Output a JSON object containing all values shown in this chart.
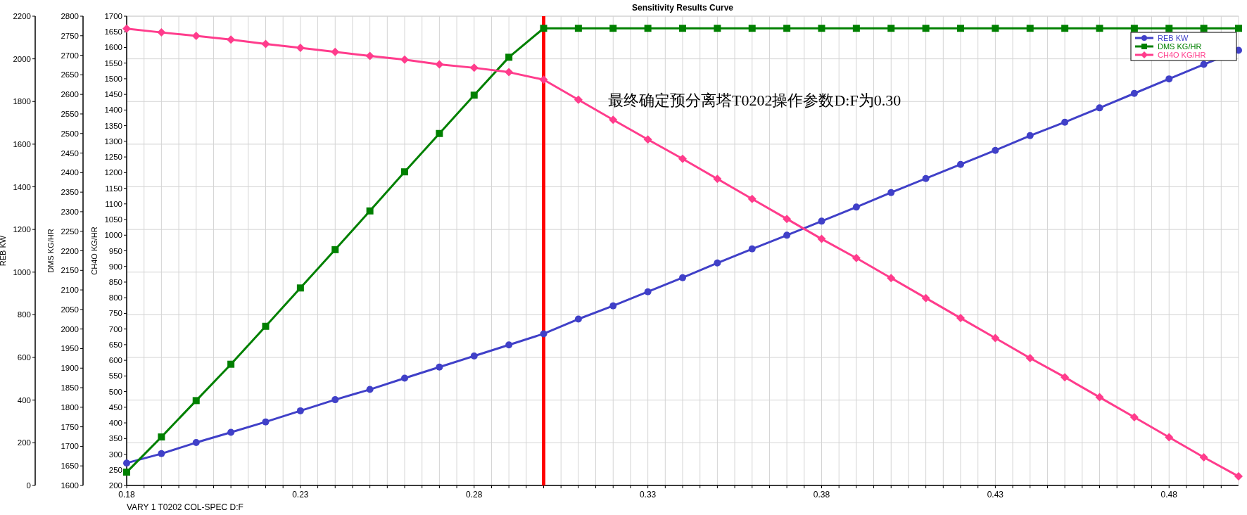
{
  "chart_data": {
    "type": "line",
    "title": "Sensitivity Results Curve",
    "xlabel": "VARY   1 T0202 COL-SPEC D:F",
    "ylabel": "REB KW",
    "y2label": "DMS KG/HR",
    "y3label": "CH4O KG/HR",
    "annotations": [
      "最终确定预分离塔T0202操作参数D:F为0.30"
    ],
    "x": [
      0.18,
      0.19,
      0.2,
      0.21,
      0.22,
      0.23,
      0.24,
      0.25,
      0.26,
      0.27,
      0.28,
      0.29,
      0.3,
      0.31,
      0.32,
      0.33,
      0.34,
      0.35,
      0.36,
      0.37,
      0.38,
      0.39,
      0.4,
      0.41,
      0.42,
      0.43,
      0.44,
      0.45,
      0.46,
      0.47,
      0.48,
      0.49,
      0.5
    ],
    "series": [
      {
        "name": "REB KW",
        "color": "#4040c8",
        "marker": "circle",
        "values": [
          105,
          149,
          201,
          249,
          298,
          350,
          402,
          450,
          503,
          555,
          607,
          659,
          711,
          780,
          842,
          908,
          974,
          1043,
          1109,
          1173,
          1239,
          1305,
          1373,
          1439,
          1505,
          1571,
          1640,
          1703,
          1770,
          1838,
          1906,
          1974,
          2040
        ]
      },
      {
        "name": "DMS KG/HR",
        "color": "#008000",
        "marker": "square",
        "axis": "y2",
        "values": [
          1634,
          1724,
          1817,
          1910,
          2007,
          2105,
          2203,
          2302,
          2402,
          2500,
          2598,
          2695,
          2769,
          2769,
          2769,
          2769,
          2769,
          2769,
          2769,
          2769,
          2769,
          2769,
          2769,
          2769,
          2769,
          2769,
          2769,
          2769,
          2769,
          2769,
          2769,
          2769,
          2769
        ]
      },
      {
        "name": "CH4O KG/HR",
        "color": "#ff3c8c",
        "marker": "diamond",
        "axis": "y3",
        "values": [
          1660,
          1648,
          1637,
          1625,
          1611,
          1599,
          1586,
          1573,
          1561,
          1546,
          1535,
          1521,
          1497,
          1433,
          1369,
          1306,
          1244,
          1180,
          1116,
          1052,
          988,
          927,
          863,
          799,
          735,
          671,
          607,
          546,
          482,
          418,
          354,
          290,
          229
        ]
      }
    ],
    "ref_lines": [
      {
        "axis": "x",
        "value": 0.3,
        "color": "#ff0000"
      }
    ],
    "xlim": [
      0.18,
      0.5
    ],
    "xticks": [
      {
        "value": 0.18,
        "label": "0.18"
      },
      {
        "value": 0.185,
        "label": null
      },
      {
        "value": 0.19,
        "label": null
      },
      {
        "value": 0.195,
        "label": null
      },
      {
        "value": 0.2,
        "label": null
      },
      {
        "value": 0.205,
        "label": null
      },
      {
        "value": 0.21,
        "label": null
      },
      {
        "value": 0.215,
        "label": null
      },
      {
        "value": 0.22,
        "label": null
      },
      {
        "value": 0.225,
        "label": null
      },
      {
        "value": 0.23,
        "label": "0.23"
      },
      {
        "value": 0.235,
        "label": null
      },
      {
        "value": 0.24,
        "label": null
      },
      {
        "value": 0.245,
        "label": null
      },
      {
        "value": 0.25,
        "label": null
      },
      {
        "value": 0.255,
        "label": null
      },
      {
        "value": 0.26,
        "label": null
      },
      {
        "value": 0.265,
        "label": null
      },
      {
        "value": 0.27,
        "label": null
      },
      {
        "value": 0.275,
        "label": null
      },
      {
        "value": 0.28,
        "label": "0.28"
      },
      {
        "value": 0.285,
        "label": null
      },
      {
        "value": 0.29,
        "label": null
      },
      {
        "value": 0.295,
        "label": null
      },
      {
        "value": 0.3,
        "label": null
      },
      {
        "value": 0.305,
        "label": null
      },
      {
        "value": 0.31,
        "label": null
      },
      {
        "value": 0.315,
        "label": null
      },
      {
        "value": 0.32,
        "label": null
      },
      {
        "value": 0.325,
        "label": null
      },
      {
        "value": 0.33,
        "label": "0.33"
      },
      {
        "value": 0.335,
        "label": null
      },
      {
        "value": 0.34,
        "label": null
      },
      {
        "value": 0.345,
        "label": null
      },
      {
        "value": 0.35,
        "label": null
      },
      {
        "value": 0.355,
        "label": null
      },
      {
        "value": 0.36,
        "label": null
      },
      {
        "value": 0.365,
        "label": null
      },
      {
        "value": 0.37,
        "label": null
      },
      {
        "value": 0.375,
        "label": null
      },
      {
        "value": 0.38,
        "label": "0.38"
      },
      {
        "value": 0.385,
        "label": null
      },
      {
        "value": 0.39,
        "label": null
      },
      {
        "value": 0.395,
        "label": null
      },
      {
        "value": 0.4,
        "label": null
      },
      {
        "value": 0.405,
        "label": null
      },
      {
        "value": 0.41,
        "label": null
      },
      {
        "value": 0.415,
        "label": null
      },
      {
        "value": 0.42,
        "label": null
      },
      {
        "value": 0.425,
        "label": null
      },
      {
        "value": 0.43,
        "label": "0.43"
      },
      {
        "value": 0.435,
        "label": null
      },
      {
        "value": 0.44,
        "label": null
      },
      {
        "value": 0.445,
        "label": null
      },
      {
        "value": 0.45,
        "label": null
      },
      {
        "value": 0.455,
        "label": null
      },
      {
        "value": 0.46,
        "label": null
      },
      {
        "value": 0.465,
        "label": null
      },
      {
        "value": 0.47,
        "label": null
      },
      {
        "value": 0.475,
        "label": null
      },
      {
        "value": 0.48,
        "label": "0.48"
      },
      {
        "value": 0.485,
        "label": null
      },
      {
        "value": 0.49,
        "label": null
      },
      {
        "value": 0.495,
        "label": null
      }
    ],
    "ylim": [
      0,
      2200
    ],
    "yticks": [
      0,
      200,
      400,
      600,
      800,
      1000,
      1200,
      1400,
      1600,
      1800,
      2000,
      2200
    ],
    "y2lim": [
      1600,
      2800
    ],
    "y2ticks": [
      1600,
      1650,
      1700,
      1750,
      1800,
      1850,
      1900,
      1950,
      2000,
      2050,
      2100,
      2150,
      2200,
      2250,
      2300,
      2350,
      2400,
      2450,
      2500,
      2550,
      2600,
      2650,
      2700,
      2750,
      2800
    ],
    "y3lim": [
      200,
      1700
    ],
    "y3ticks": [
      200,
      250,
      300,
      350,
      400,
      450,
      500,
      550,
      600,
      650,
      700,
      750,
      800,
      850,
      900,
      950,
      1000,
      1050,
      1100,
      1150,
      1200,
      1250,
      1300,
      1350,
      1400,
      1450,
      1500,
      1550,
      1600,
      1650,
      1700
    ],
    "grid": true,
    "legend": "top right",
    "line_style": "solid"
  }
}
